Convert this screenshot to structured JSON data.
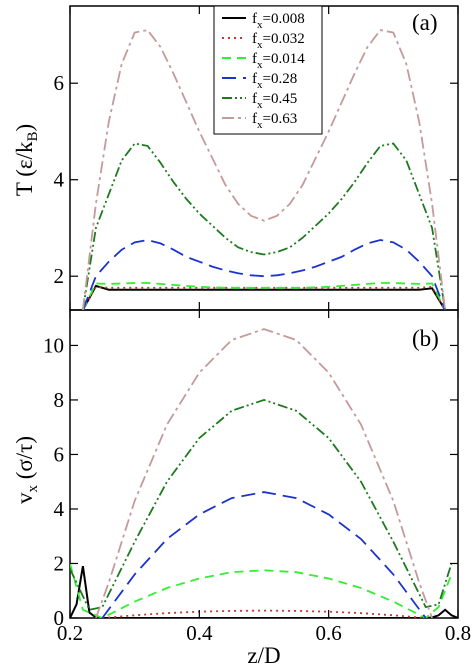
{
  "chart_data": [
    {
      "type": "line",
      "panel_label": "(a)",
      "ylabel": "T (ε/k_B)",
      "xlabel": "",
      "xlim": [
        0.2,
        0.8
      ],
      "ylim": [
        1.3,
        7.6
      ],
      "x_ticks": [
        0.2,
        0.4,
        0.6,
        0.8
      ],
      "y_ticks": [
        2,
        4,
        6
      ],
      "legend_position": "top-center",
      "grid": false,
      "x": [
        0.22,
        0.24,
        0.26,
        0.28,
        0.3,
        0.32,
        0.34,
        0.36,
        0.38,
        0.4,
        0.42,
        0.44,
        0.46,
        0.48,
        0.5,
        0.52,
        0.54,
        0.56,
        0.58,
        0.6,
        0.62,
        0.64,
        0.66,
        0.68,
        0.7,
        0.72,
        0.74,
        0.76,
        0.78
      ],
      "series": [
        {
          "name": "f_x=0.008",
          "color": "#000000",
          "dash": "solid",
          "values": [
            1.3,
            1.8,
            1.72,
            1.72,
            1.72,
            1.72,
            1.72,
            1.72,
            1.72,
            1.72,
            1.72,
            1.72,
            1.72,
            1.72,
            1.72,
            1.72,
            1.72,
            1.72,
            1.72,
            1.72,
            1.72,
            1.72,
            1.72,
            1.72,
            1.72,
            1.72,
            1.72,
            1.75,
            1.3
          ]
        },
        {
          "name": "f_x=0.032",
          "color": "#c0392b",
          "dash": "dotted",
          "values": [
            1.3,
            1.78,
            1.76,
            1.76,
            1.76,
            1.76,
            1.76,
            1.76,
            1.76,
            1.76,
            1.76,
            1.76,
            1.76,
            1.76,
            1.76,
            1.76,
            1.76,
            1.76,
            1.76,
            1.76,
            1.76,
            1.76,
            1.76,
            1.76,
            1.76,
            1.76,
            1.76,
            1.78,
            1.3
          ]
        },
        {
          "name": "f_x=0.014",
          "color": "#33ee33",
          "dash": "dashed",
          "values": [
            1.3,
            1.85,
            1.84,
            1.85,
            1.86,
            1.86,
            1.84,
            1.82,
            1.8,
            1.78,
            1.77,
            1.76,
            1.76,
            1.76,
            1.76,
            1.76,
            1.76,
            1.76,
            1.77,
            1.78,
            1.8,
            1.82,
            1.84,
            1.86,
            1.86,
            1.85,
            1.84,
            1.85,
            1.3
          ]
        },
        {
          "name": "f_x=0.28",
          "color": "#1c33cc",
          "dash": "longdash",
          "values": [
            1.3,
            2.0,
            2.3,
            2.55,
            2.7,
            2.75,
            2.68,
            2.55,
            2.4,
            2.3,
            2.2,
            2.12,
            2.06,
            2.02,
            2.0,
            2.02,
            2.06,
            2.12,
            2.2,
            2.3,
            2.4,
            2.55,
            2.68,
            2.75,
            2.7,
            2.55,
            2.3,
            2.0,
            1.3
          ]
        },
        {
          "name": "f_x=0.45",
          "color": "#1e7a1e",
          "dash": "dashdotdot",
          "values": [
            1.3,
            3.0,
            3.7,
            4.4,
            4.75,
            4.7,
            4.35,
            3.95,
            3.6,
            3.3,
            3.05,
            2.8,
            2.6,
            2.5,
            2.45,
            2.5,
            2.6,
            2.8,
            3.05,
            3.3,
            3.6,
            3.95,
            4.35,
            4.7,
            4.75,
            4.4,
            3.7,
            3.0,
            1.3
          ]
        },
        {
          "name": "f_x=0.63",
          "color": "#c49a9a",
          "dash": "dashdot",
          "values": [
            1.3,
            3.5,
            5.2,
            6.4,
            7.05,
            7.1,
            6.75,
            6.2,
            5.6,
            5.0,
            4.45,
            3.9,
            3.5,
            3.25,
            3.15,
            3.25,
            3.5,
            3.9,
            4.45,
            5.0,
            5.6,
            6.2,
            6.75,
            7.1,
            7.05,
            6.4,
            5.2,
            3.5,
            1.3
          ]
        }
      ]
    },
    {
      "type": "line",
      "panel_label": "(b)",
      "ylabel": "v_x (σ/τ)",
      "xlabel": "z/D",
      "xlim": [
        0.2,
        0.8
      ],
      "ylim": [
        0,
        11.3
      ],
      "x_ticks": [
        0.2,
        0.4,
        0.6,
        0.8
      ],
      "y_ticks": [
        0,
        2,
        4,
        6,
        8,
        10
      ],
      "grid": false,
      "series": [
        {
          "name": "f_x=0.008",
          "color": "#000000",
          "dash": "solid",
          "x": [
            0.2,
            0.21,
            0.22,
            0.23,
            0.24,
            0.25,
            0.75,
            0.76,
            0.77,
            0.78,
            0.79,
            0.8
          ],
          "values": [
            0.0,
            0.5,
            1.9,
            0.2,
            0.02,
            0.0,
            0.0,
            0.02,
            0.1,
            0.3,
            0.1,
            0.0
          ]
        },
        {
          "name": "f_x=0.032",
          "color": "#c0392b",
          "dash": "dotted",
          "x": [
            0.25,
            0.3,
            0.35,
            0.4,
            0.45,
            0.5,
            0.55,
            0.6,
            0.65,
            0.7,
            0.75
          ],
          "values": [
            0.0,
            0.1,
            0.18,
            0.23,
            0.26,
            0.27,
            0.26,
            0.23,
            0.18,
            0.1,
            0.0
          ]
        },
        {
          "name": "f_x=0.014",
          "color": "#33ee33",
          "dash": "dashed",
          "x": [
            0.2,
            0.22,
            0.25,
            0.3,
            0.35,
            0.4,
            0.45,
            0.5,
            0.55,
            0.6,
            0.65,
            0.7,
            0.75,
            0.77,
            0.79
          ],
          "values": [
            2.0,
            0.3,
            0.0,
            0.6,
            1.1,
            1.45,
            1.68,
            1.75,
            1.68,
            1.45,
            1.1,
            0.6,
            0.0,
            0.4,
            1.6
          ]
        },
        {
          "name": "f_x=0.28",
          "color": "#1c33cc",
          "dash": "longdash",
          "x": [
            0.25,
            0.3,
            0.35,
            0.4,
            0.45,
            0.5,
            0.55,
            0.6,
            0.65,
            0.7,
            0.75
          ],
          "values": [
            0.0,
            1.6,
            2.9,
            3.8,
            4.4,
            4.62,
            4.4,
            3.8,
            2.9,
            1.6,
            0.0
          ]
        },
        {
          "name": "f_x=0.45",
          "color": "#1e7a1e",
          "dash": "dashdotdot",
          "x": [
            0.2,
            0.23,
            0.25,
            0.3,
            0.35,
            0.4,
            0.45,
            0.5,
            0.55,
            0.6,
            0.65,
            0.7,
            0.75,
            0.77,
            0.79
          ],
          "values": [
            1.8,
            0.3,
            0.4,
            2.8,
            5.0,
            6.6,
            7.6,
            8.0,
            7.6,
            6.6,
            5.0,
            2.8,
            0.4,
            0.5,
            2.0
          ]
        },
        {
          "name": "f_x=0.63",
          "color": "#c49a9a",
          "dash": "dashdot",
          "x": [
            0.24,
            0.26,
            0.3,
            0.35,
            0.4,
            0.45,
            0.5,
            0.55,
            0.6,
            0.65,
            0.7,
            0.74,
            0.76
          ],
          "values": [
            0.0,
            1.3,
            4.3,
            7.1,
            9.0,
            10.2,
            10.6,
            10.2,
            9.0,
            7.1,
            4.3,
            1.3,
            0.0
          ]
        }
      ]
    }
  ]
}
